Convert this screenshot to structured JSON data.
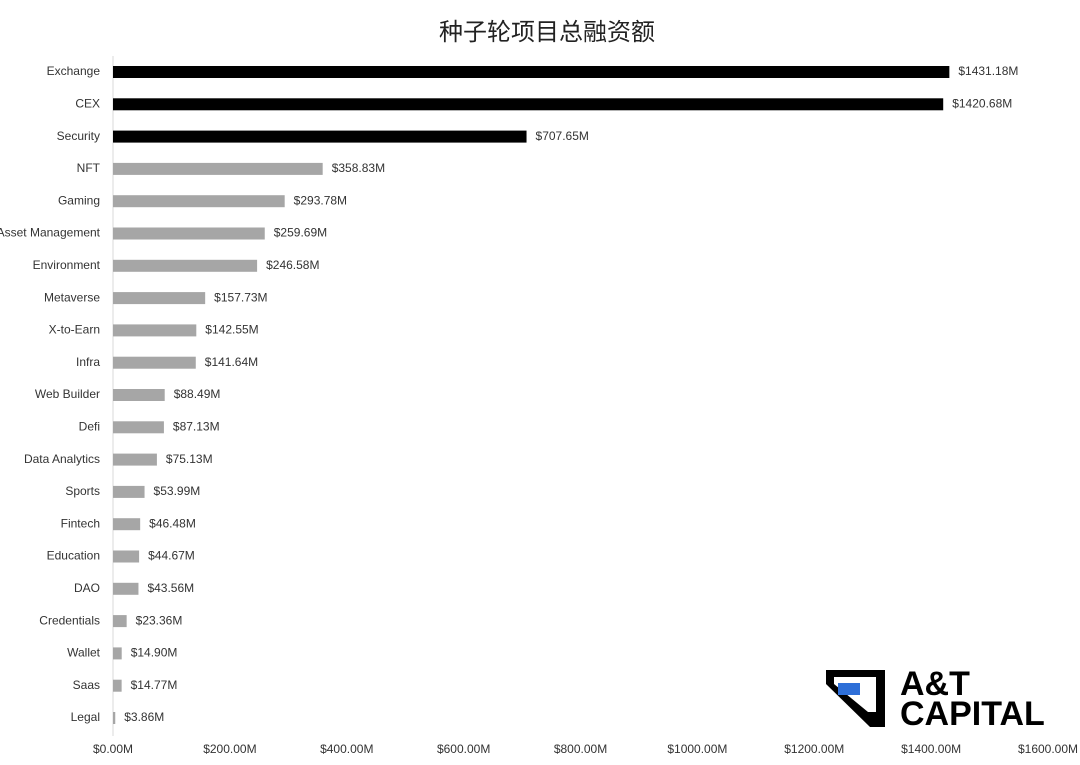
{
  "chart_data": {
    "type": "hbar",
    "title": "种子轮项目总融资额",
    "categories": [
      "Exchange",
      "CEX",
      "Security",
      "NFT",
      "Gaming",
      "Asset Management",
      "Environment",
      "Metaverse",
      "X-to-Earn",
      "Infra",
      "Web Builder",
      "Defi",
      "Data Analytics",
      "Sports",
      "Fintech",
      "Education",
      "DAO",
      "Credentials",
      "Wallet",
      "Saas",
      "Legal"
    ],
    "values": [
      1431.18,
      1420.68,
      707.65,
      358.83,
      293.78,
      259.69,
      246.58,
      157.73,
      142.55,
      141.64,
      88.49,
      87.13,
      75.13,
      53.99,
      46.48,
      44.67,
      43.56,
      23.36,
      14.9,
      14.77,
      3.86
    ],
    "value_labels": [
      "$1431.18M",
      "$1420.68M",
      "$707.65M",
      "$358.83M",
      "$293.78M",
      "$259.69M",
      "$246.58M",
      "$157.73M",
      "$142.55M",
      "$141.64M",
      "$88.49M",
      "$87.13M",
      "$75.13M",
      "$53.99M",
      "$46.48M",
      "$44.67M",
      "$43.56M",
      "$23.36M",
      "$14.90M",
      "$14.77M",
      "$3.86M"
    ],
    "colors": [
      "#000000",
      "#000000",
      "#000000",
      "#a6a6a6",
      "#a6a6a6",
      "#a6a6a6",
      "#a6a6a6",
      "#a6a6a6",
      "#a6a6a6",
      "#a6a6a6",
      "#a6a6a6",
      "#a6a6a6",
      "#a6a6a6",
      "#a6a6a6",
      "#a6a6a6",
      "#a6a6a6",
      "#a6a6a6",
      "#a6a6a6",
      "#a6a6a6",
      "#a6a6a6",
      "#a6a6a6"
    ],
    "xlim": [
      0,
      1600
    ],
    "xticks": [
      {
        "value": 0,
        "label": "$0.00M"
      },
      {
        "value": 200,
        "label": "$200.00M"
      },
      {
        "value": 400,
        "label": "$400.00M"
      },
      {
        "value": 600,
        "label": "$600.00M"
      },
      {
        "value": 800,
        "label": "$800.00M"
      },
      {
        "value": 1000,
        "label": "$1000.00M"
      },
      {
        "value": 1200,
        "label": "$1200.00M"
      },
      {
        "value": 1400,
        "label": "$1400.00M"
      },
      {
        "value": 1600,
        "label": "$1600.00M"
      }
    ],
    "grid": false,
    "logo": [
      "A&T",
      "CAPITAL"
    ]
  }
}
